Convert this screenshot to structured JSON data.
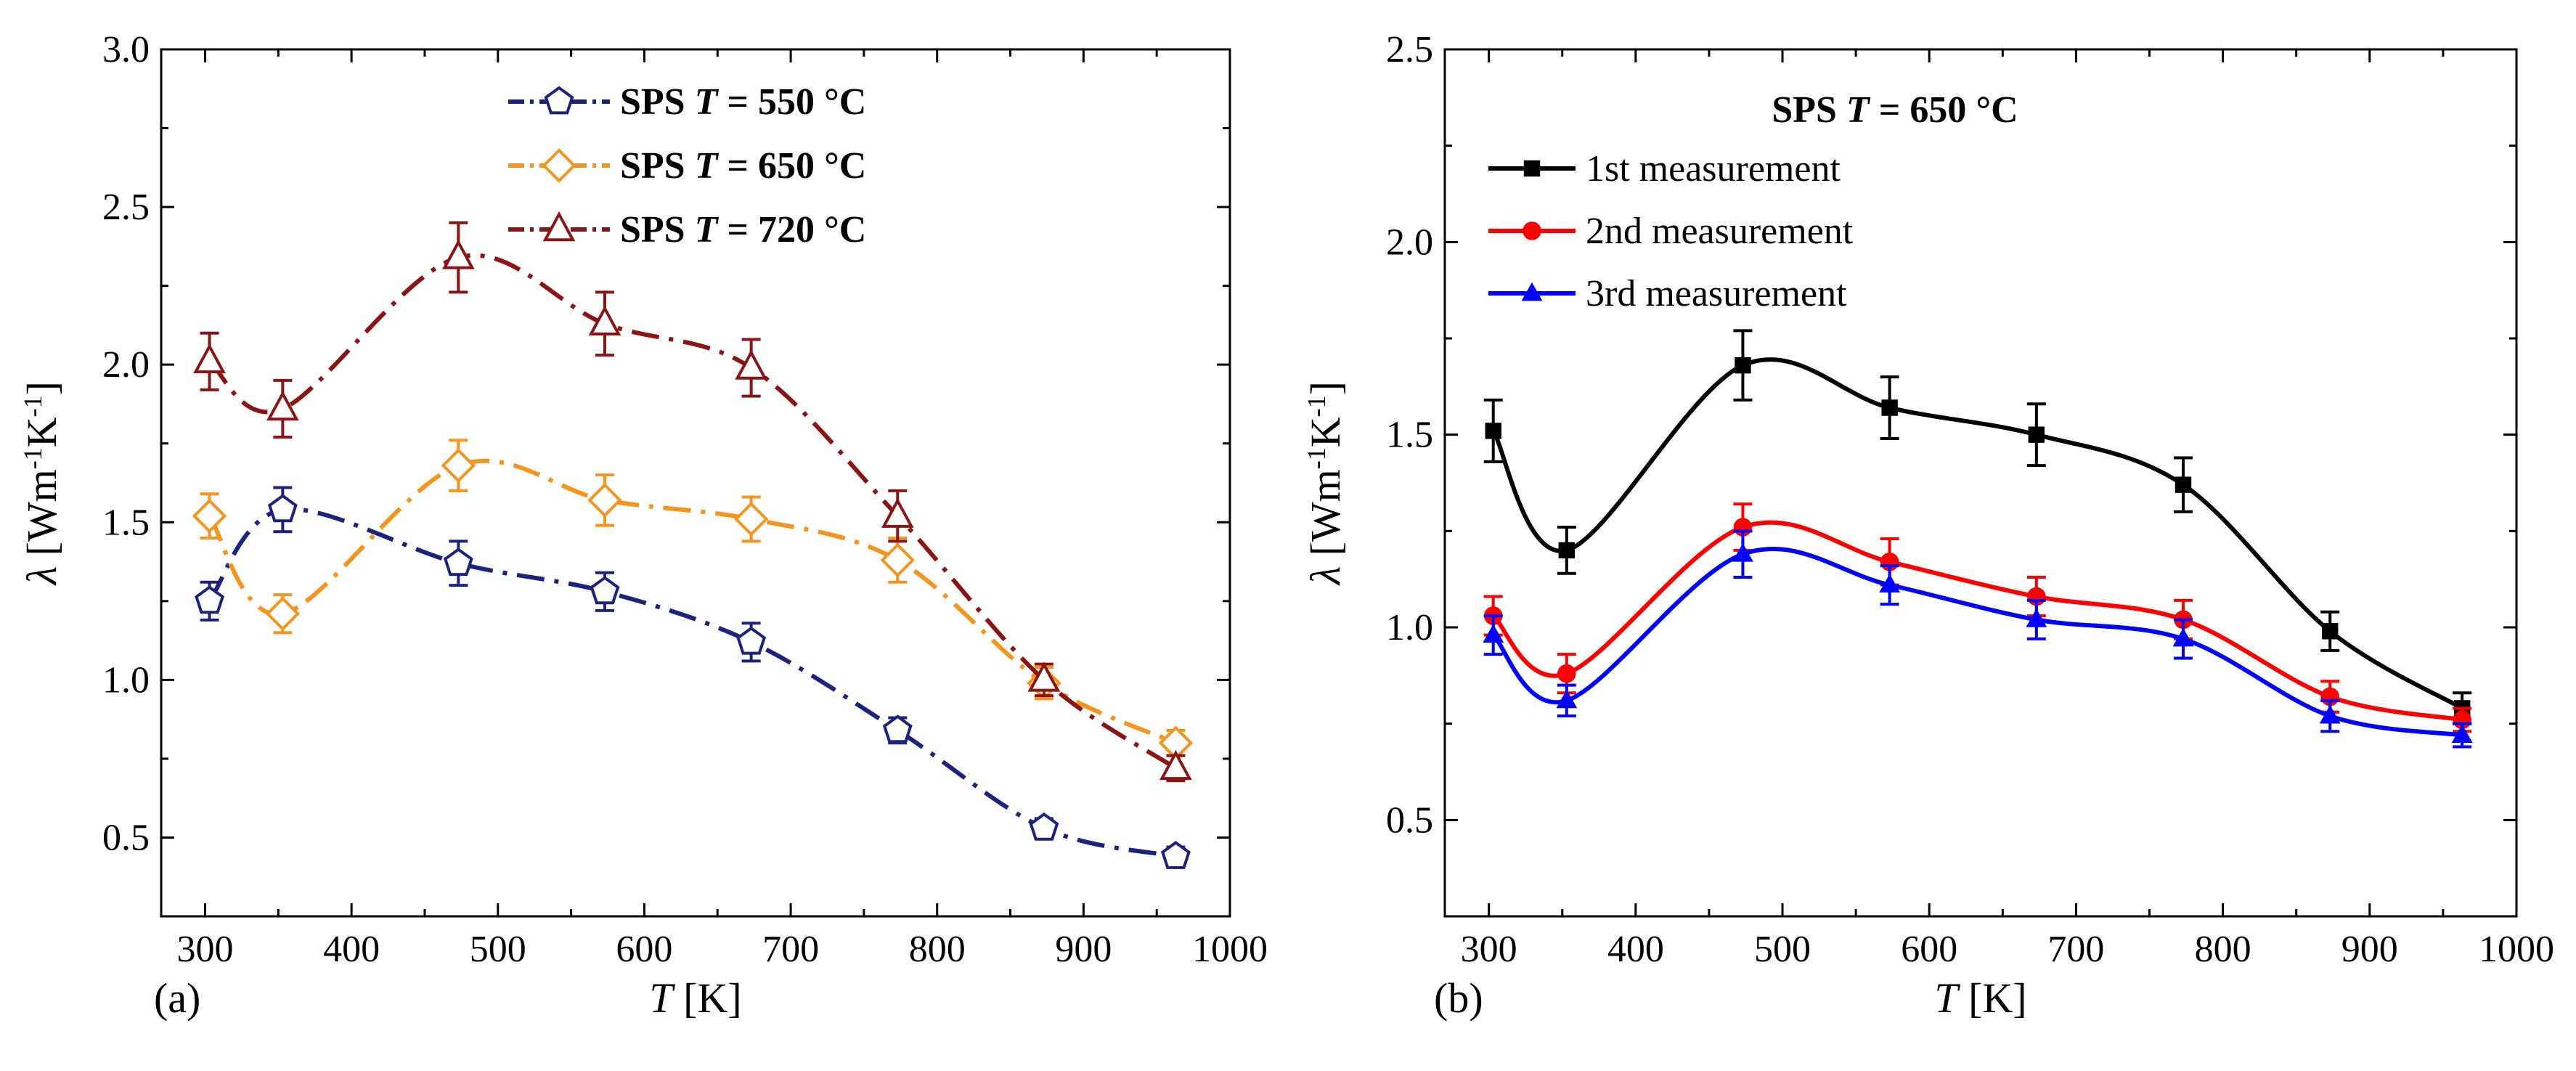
{
  "chart_data": [
    {
      "type": "line",
      "panel_label": "(a)",
      "xlabel_var": "T",
      "xlabel_unit": " [K]",
      "ylabel_var": "λ",
      "ylabel_unit_parts": [
        " [Wm",
        "-1",
        "K",
        "-1",
        "]"
      ],
      "xlim": [
        270,
        1000
      ],
      "ylim": [
        0.25,
        3.0
      ],
      "xticks": [
        300,
        400,
        500,
        600,
        700,
        800,
        900,
        1000
      ],
      "xtick_labels": [
        "300",
        "400",
        "500",
        "600",
        "700",
        "800",
        "900",
        "1000"
      ],
      "yticks": [
        0.5,
        1.0,
        1.5,
        2.0,
        2.5,
        3.0
      ],
      "ytick_labels": [
        "0.5",
        "1.0",
        "1.5",
        "2.0",
        "2.5",
        "3.0"
      ],
      "legend_position": "top-center",
      "series": [
        {
          "name": "SPS T = 550 °C",
          "label_prefix": "SPS ",
          "label_var": "T",
          "label_value": " = 550 °C",
          "color": "#1a237e",
          "marker": "pentagon-open",
          "line_style": "dash-dot",
          "x": [
            303,
            353,
            473,
            573,
            673,
            773,
            873,
            963
          ],
          "y": [
            1.25,
            1.54,
            1.37,
            1.28,
            1.12,
            0.84,
            0.53,
            0.44
          ],
          "err": [
            0.06,
            0.07,
            0.07,
            0.06,
            0.06,
            0.04,
            0.03,
            0.03
          ]
        },
        {
          "name": "SPS T = 650 °C",
          "label_prefix": "SPS ",
          "label_var": "T",
          "label_value": " = 650 °C",
          "color": "#f7941d",
          "marker": "diamond-open",
          "line_style": "dash-dot",
          "x": [
            303,
            353,
            473,
            573,
            673,
            773,
            873,
            963
          ],
          "y": [
            1.52,
            1.21,
            1.68,
            1.57,
            1.51,
            1.38,
            0.99,
            0.8
          ],
          "err": [
            0.07,
            0.06,
            0.08,
            0.08,
            0.07,
            0.07,
            0.05,
            0.04
          ]
        },
        {
          "name": "SPS T = 720 °C",
          "label_prefix": "SPS ",
          "label_var": "T",
          "label_value": " = 720 °C",
          "color": "#8b1414",
          "marker": "triangle-open",
          "line_style": "dash-dot",
          "x": [
            303,
            353,
            473,
            573,
            673,
            773,
            873,
            963
          ],
          "y": [
            2.01,
            1.86,
            2.34,
            2.13,
            1.99,
            1.52,
            1.0,
            0.72
          ],
          "err": [
            0.09,
            0.09,
            0.11,
            0.1,
            0.09,
            0.08,
            0.05,
            0.04
          ]
        }
      ]
    },
    {
      "type": "line",
      "panel_label": "(b)",
      "title_prefix": "SPS ",
      "title_var": "T",
      "title_value": " = 650 °C",
      "xlabel_var": "T",
      "xlabel_unit": " [K]",
      "ylabel_var": "λ",
      "ylabel_unit_parts": [
        " [Wm",
        "-1",
        "K",
        "-1",
        "]"
      ],
      "xlim": [
        270,
        1000
      ],
      "ylim": [
        0.25,
        2.5
      ],
      "xticks": [
        300,
        400,
        500,
        600,
        700,
        800,
        900,
        1000
      ],
      "xtick_labels": [
        "300",
        "400",
        "500",
        "600",
        "700",
        "800",
        "900",
        "1000"
      ],
      "yticks": [
        0.5,
        1.0,
        1.5,
        2.0,
        2.5
      ],
      "ytick_labels": [
        "0.5",
        "1.0",
        "1.5",
        "2.0",
        "2.5"
      ],
      "legend_position": "top-left",
      "series": [
        {
          "name": "1st measurement",
          "color": "#000000",
          "marker": "square-filled",
          "line_style": "solid",
          "x": [
            303,
            353,
            473,
            573,
            673,
            773,
            873,
            963
          ],
          "y": [
            1.51,
            1.2,
            1.68,
            1.57,
            1.5,
            1.37,
            0.99,
            0.79
          ],
          "err": [
            0.08,
            0.06,
            0.09,
            0.08,
            0.08,
            0.07,
            0.05,
            0.04
          ]
        },
        {
          "name": "2nd measurement",
          "color": "#ff0000",
          "marker": "circle-filled",
          "line_style": "solid",
          "x": [
            303,
            353,
            473,
            573,
            673,
            773,
            873,
            963
          ],
          "y": [
            1.03,
            0.88,
            1.26,
            1.17,
            1.08,
            1.02,
            0.82,
            0.76
          ],
          "err": [
            0.05,
            0.05,
            0.06,
            0.06,
            0.05,
            0.05,
            0.04,
            0.03
          ]
        },
        {
          "name": "3rd measurement",
          "color": "#0000ff",
          "marker": "triangle-filled",
          "line_style": "solid",
          "x": [
            303,
            353,
            473,
            573,
            673,
            773,
            873,
            963
          ],
          "y": [
            0.98,
            0.81,
            1.19,
            1.11,
            1.02,
            0.97,
            0.77,
            0.72
          ],
          "err": [
            0.05,
            0.04,
            0.06,
            0.05,
            0.05,
            0.05,
            0.04,
            0.03
          ]
        }
      ]
    }
  ]
}
